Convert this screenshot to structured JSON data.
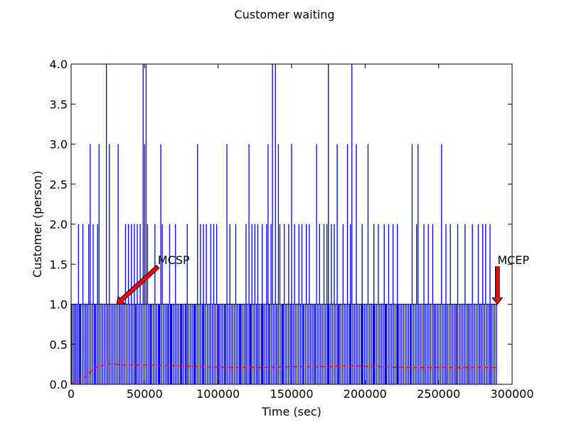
{
  "chart_data": {
    "type": "line",
    "title": "Customer waiting",
    "xlabel": "Time (sec)",
    "ylabel": "Customer (person)",
    "xlim": [
      0,
      300000
    ],
    "ylim": [
      0,
      4.0
    ],
    "xticks": [
      0,
      50000,
      100000,
      150000,
      200000,
      250000,
      300000
    ],
    "xtick_labels": [
      "0",
      "50000",
      "100000",
      "150000",
      "200000",
      "250000",
      "300000"
    ],
    "yticks": [
      0.0,
      0.5,
      1.0,
      1.5,
      2.0,
      2.5,
      3.0,
      3.5,
      4.0
    ],
    "ytick_labels": [
      "0.0",
      "0.5",
      "1.0",
      "1.5",
      "2.0",
      "2.5",
      "3.0",
      "3.5",
      "4.0"
    ],
    "grid": false,
    "series": [
      {
        "style": "solid",
        "color": "#0000ff",
        "x_range": [
          0,
          290000
        ],
        "baseline": 1,
        "spikes_to_2": [
          5000,
          8000,
          12000,
          15000,
          18000,
          24000,
          26000,
          37000,
          39000,
          41000,
          43000,
          45000,
          47000,
          52000,
          57000,
          62000,
          67000,
          71000,
          79000,
          86000,
          88000,
          90000,
          92000,
          95000,
          97000,
          99000,
          106000,
          108000,
          112000,
          119000,
          121000,
          123000,
          125000,
          127000,
          130000,
          133000,
          136000,
          142000,
          145000,
          148000,
          152000,
          155000,
          157000,
          160000,
          162000,
          167000,
          169000,
          172000,
          174000,
          177000,
          179000,
          181000,
          185000,
          188000,
          190000,
          194000,
          198000,
          202000,
          206000,
          209000,
          213000,
          216000,
          219000,
          222000,
          232000,
          235000,
          240000,
          243000,
          246000,
          252000,
          255000,
          258000,
          263000,
          268000,
          273000,
          277000,
          280000,
          282000,
          285000
        ],
        "spikes_to_3": [
          13000,
          19000,
          26000,
          32000,
          50000,
          61000,
          86000,
          106000,
          121000,
          134000,
          137000,
          141000,
          150000,
          167000,
          175000,
          181000,
          188000,
          194000,
          202000,
          232000,
          236000,
          252000
        ],
        "spikes_to_4": [
          24000,
          49000,
          51000,
          137000,
          139000,
          175000,
          191000
        ],
        "drops_to_0": [
          2000,
          4000,
          6000,
          10000,
          16000,
          19000,
          25000,
          33000,
          44000,
          54000,
          60000,
          66000,
          68000,
          75000,
          78000,
          79000,
          84000,
          90000,
          100000,
          105000,
          110000,
          115000,
          118000,
          119000,
          122000,
          127000,
          130000,
          135000,
          140000,
          144000,
          150000,
          158000,
          166000,
          175000,
          182000,
          190000,
          198000,
          206000,
          214000,
          222000,
          231000,
          240000,
          247000,
          255000,
          262000,
          270000,
          278000,
          285000
        ]
      },
      {
        "style": "dashed",
        "color": "#ff0000",
        "x": [
          0,
          5000,
          10000,
          14000,
          18000,
          22000,
          27000,
          35000,
          50000,
          70000,
          90000,
          110000,
          130000,
          150000,
          170000,
          190000,
          210000,
          230000,
          250000,
          270000,
          290000
        ],
        "values": [
          0.0,
          0.05,
          0.09,
          0.17,
          0.22,
          0.24,
          0.26,
          0.24,
          0.24,
          0.23,
          0.22,
          0.21,
          0.21,
          0.22,
          0.22,
          0.23,
          0.22,
          0.21,
          0.21,
          0.21,
          0.21
        ]
      }
    ],
    "annotations": [
      {
        "text": "MCSP",
        "point": [
          31000,
          1.0
        ],
        "text_pos": [
          59000,
          1.45
        ]
      },
      {
        "text": "MCEP",
        "point": [
          290000,
          1.0
        ],
        "text_pos": [
          290000,
          1.45
        ]
      }
    ],
    "colors": {
      "arrow_fill": "#ff0000",
      "arrow_edge": "#000000"
    }
  }
}
